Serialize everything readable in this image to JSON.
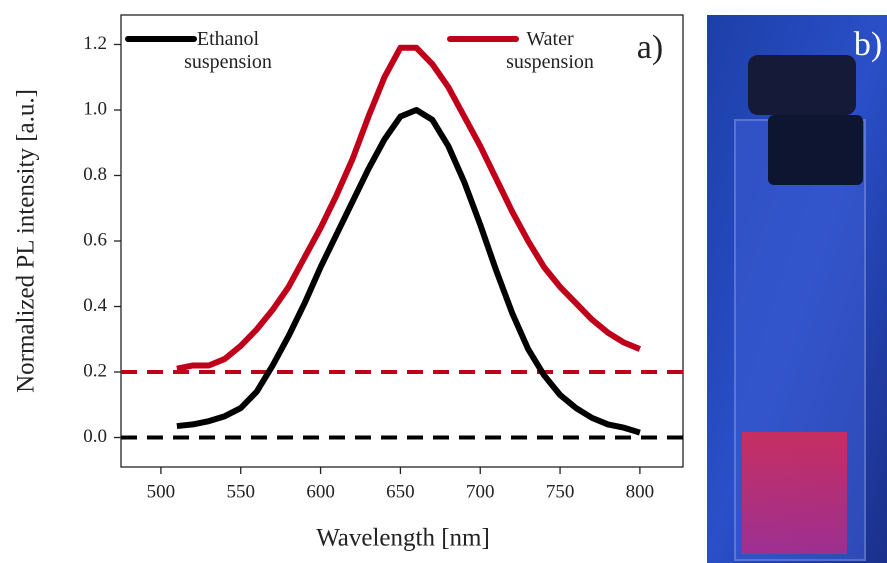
{
  "chart_data": {
    "type": "line",
    "xlabel": "Wavelength [nm]",
    "ylabel": "Normalized PL intensity [a.u.]",
    "annotations": [
      "a)",
      "b)"
    ],
    "x": [
      510,
      520,
      530,
      540,
      550,
      560,
      570,
      580,
      590,
      600,
      610,
      620,
      630,
      640,
      650,
      660,
      670,
      680,
      690,
      700,
      710,
      720,
      730,
      740,
      750,
      760,
      770,
      780,
      790,
      800
    ],
    "series": [
      {
        "name": "Ethanol suspension",
        "color": "#000000",
        "values": [
          0.035,
          0.04,
          0.05,
          0.065,
          0.09,
          0.14,
          0.22,
          0.31,
          0.41,
          0.52,
          0.62,
          0.72,
          0.82,
          0.91,
          0.98,
          1.0,
          0.97,
          0.89,
          0.78,
          0.65,
          0.51,
          0.38,
          0.27,
          0.19,
          0.13,
          0.09,
          0.06,
          0.04,
          0.03,
          0.015
        ]
      },
      {
        "name": "Water suspension",
        "color": "#c0001a",
        "values": [
          0.21,
          0.22,
          0.22,
          0.24,
          0.28,
          0.33,
          0.39,
          0.46,
          0.55,
          0.64,
          0.74,
          0.85,
          0.98,
          1.1,
          1.19,
          1.19,
          1.14,
          1.07,
          0.98,
          0.89,
          0.79,
          0.69,
          0.6,
          0.52,
          0.46,
          0.41,
          0.36,
          0.32,
          0.29,
          0.27
        ]
      }
    ],
    "reference_lines": [
      {
        "value": 0,
        "color": "#000000"
      },
      {
        "value": 0.2,
        "color": "#c0001a"
      }
    ],
    "xlim": [
      475,
      827
    ],
    "ylim": [
      -0.09,
      1.29
    ],
    "xticks": [
      500,
      550,
      600,
      650,
      700,
      750,
      800
    ],
    "yticks": [
      {
        "value": 0,
        "label": "0.0"
      },
      {
        "value": 0.2,
        "label": "0.2"
      },
      {
        "value": 0.4,
        "label": "0.4"
      },
      {
        "value": 0.6,
        "label": "0.6"
      },
      {
        "value": 0.8,
        "label": "0.8"
      },
      {
        "value": 1,
        "label": "1.0"
      },
      {
        "value": 1.2,
        "label": "1.2"
      }
    ]
  }
}
